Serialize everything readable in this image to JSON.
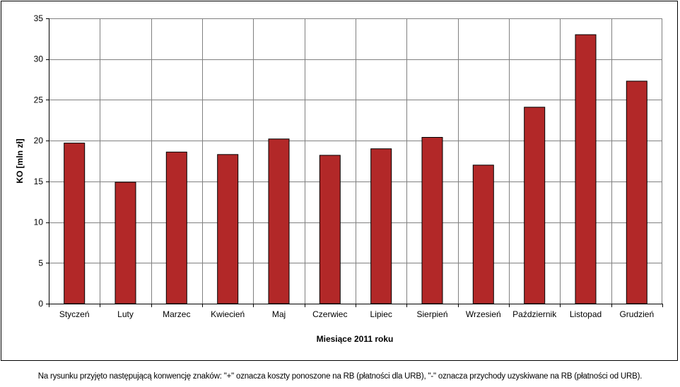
{
  "chart_data": {
    "type": "bar",
    "title": "",
    "xlabel": "Miesiące 2011  roku",
    "ylabel": "KO [mln zł]",
    "categories": [
      "Styczeń",
      "Luty",
      "Marzec",
      "Kwiecień",
      "Maj",
      "Czerwiec",
      "Lipiec",
      "Sierpień",
      "Wrzesień",
      "Październik",
      "Listopad",
      "Grudzień"
    ],
    "values": [
      19.7,
      14.9,
      18.6,
      18.3,
      20.2,
      18.2,
      19.0,
      20.4,
      17.0,
      24.1,
      33.0,
      27.3
    ],
    "ylim": [
      0,
      35
    ],
    "yticks": [
      "0",
      "5",
      "10",
      "15",
      "20",
      "25",
      "30",
      "35"
    ],
    "grid": true,
    "legend": "none",
    "bar_color": "#B22828"
  },
  "footnote": "Na rysunku przyjęto następującą konwencję znaków: \"+\" oznacza koszty ponoszone na RB (płatności dla URB), \"-\" oznacza przychody uzyskiwane na RB (płatności od URB)."
}
